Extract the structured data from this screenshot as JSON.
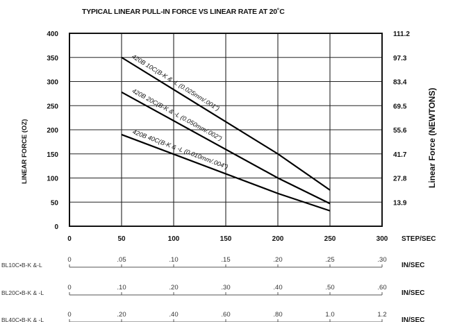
{
  "chart_data": {
    "type": "line",
    "title": "TYPICAL LINEAR PULL-IN FORCE VS LINEAR RATE  AT 20˚C",
    "xlabel": "STEP/SEC",
    "ylabel": "LINEAR FORCE (OZ)",
    "ylabel_right": "Linear Force (NEWTONS)",
    "xlim": [
      0,
      300
    ],
    "ylim": [
      0,
      400
    ],
    "grid": true,
    "x_ticks": [
      "0",
      "50",
      "100",
      "150",
      "200",
      "250",
      "300"
    ],
    "y_ticks": [
      "0",
      "50",
      "100",
      "150",
      "200",
      "250",
      "300",
      "350",
      "400"
    ],
    "y_right_ticks": [
      "13.9",
      "27.8",
      "41.7",
      "55.6",
      "69.5",
      "83.4",
      "97.3",
      "111.2"
    ],
    "series": [
      {
        "name": "420B 10C(B-K & -L  (0.025mm/.001\")",
        "x": [
          50,
          200,
          250
        ],
        "y": [
          350,
          150,
          75
        ]
      },
      {
        "name": "420B 20C(B-K & -L  (0.050mm/.002\")",
        "x": [
          50,
          200,
          250
        ],
        "y": [
          278,
          100,
          47
        ]
      },
      {
        "name": "420B 40C(B-K & -L  (0.010mm/.004\")",
        "x": [
          50,
          200,
          250
        ],
        "y": [
          190,
          68,
          32
        ]
      }
    ],
    "secondary_axes": [
      {
        "name": "BL10C•B-K &-L",
        "ticks": [
          "0",
          ".05",
          ".10",
          ".15",
          ".20",
          ".25",
          ".30"
        ],
        "unit": "IN/SEC"
      },
      {
        "name": "BL20C•B-K & -L",
        "ticks": [
          "0",
          ".10",
          ".20",
          ".30",
          ".40",
          ".50",
          ".60"
        ],
        "unit": "IN/SEC"
      },
      {
        "name": "BL40C•B-K & -L",
        "ticks": [
          "0",
          ".20",
          ".40",
          ".60",
          ".80",
          "1.0",
          "1.2"
        ],
        "unit": "IN/SEC"
      }
    ]
  }
}
